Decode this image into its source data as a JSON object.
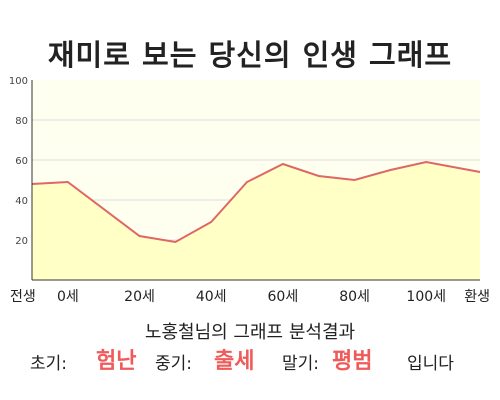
{
  "title": "재미로 보는 당신의 인생 그래프",
  "chart_data": {
    "type": "area",
    "x": [
      -10,
      0,
      20,
      30,
      40,
      50,
      60,
      70,
      80,
      90,
      100,
      115
    ],
    "values": [
      48,
      49,
      22,
      19,
      29,
      49,
      58,
      52,
      50,
      55,
      59,
      54
    ],
    "x_ticks": [
      {
        "x": -10,
        "label": "전생"
      },
      {
        "x": 0,
        "label": "0세"
      },
      {
        "x": 20,
        "label": "20세"
      },
      {
        "x": 40,
        "label": "40세"
      },
      {
        "x": 60,
        "label": "60세"
      },
      {
        "x": 80,
        "label": "80세"
      },
      {
        "x": 100,
        "label": "100세"
      },
      {
        "x": 115,
        "label": "환생"
      }
    ],
    "y_ticks": [
      "0",
      "20",
      "40",
      "60",
      "80",
      "100"
    ],
    "ylim": [
      0,
      100
    ],
    "xlim": [
      -10,
      115
    ],
    "grid": true,
    "line_color": "#e06666",
    "fill_color": "#ffffc6",
    "background_color": "#fffff0"
  },
  "caption": "노홍철님의 그래프 분석결과",
  "result": {
    "early_label": "초기:",
    "early_value": "험난",
    "middle_label": "중기:",
    "middle_value": "출세",
    "late_label": "말기:",
    "late_value": "평범",
    "ending": "입니다"
  },
  "colors": {
    "highlight": "#f05a5a"
  }
}
